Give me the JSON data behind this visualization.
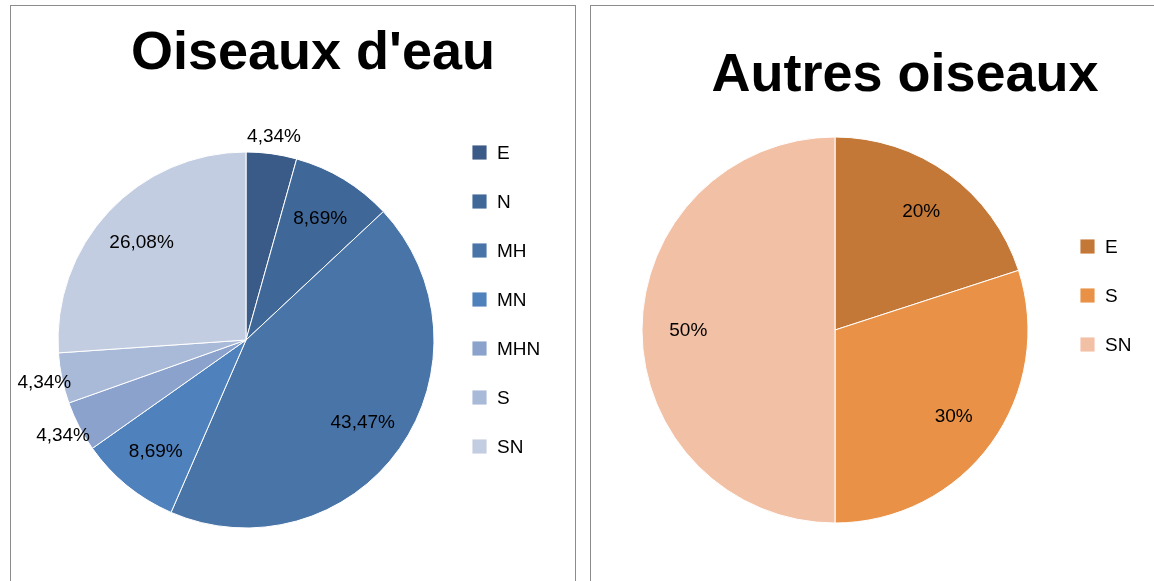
{
  "chart_data": [
    {
      "type": "pie",
      "title": "Oiseaux d'eau",
      "categories": [
        "E",
        "N",
        "MH",
        "MN",
        "MHN",
        "S",
        "SN"
      ],
      "values": [
        4.34,
        8.69,
        43.47,
        8.69,
        4.34,
        4.34,
        26.08
      ],
      "colors": [
        "#3a5a87",
        "#3f6899",
        "#4874a8",
        "#4f81bd",
        "#8aa2cc",
        "#a9b9d8",
        "#c3cde1"
      ],
      "value_labels": [
        "4,34%",
        "8,69%",
        "43,47%",
        "8,69%",
        "4,34%",
        "4,34%",
        "26,08%"
      ],
      "legend": "right"
    },
    {
      "type": "pie",
      "title": "Autres oiseaux",
      "categories": [
        "E",
        "S",
        "SN"
      ],
      "values": [
        20,
        30,
        50
      ],
      "colors": [
        "#c47838",
        "#e99247",
        "#f2c0a5"
      ],
      "value_labels": [
        "20%",
        "30%",
        "50%"
      ],
      "legend": "right"
    }
  ]
}
